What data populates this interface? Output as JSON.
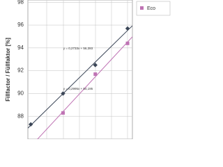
{
  "chart_data": {
    "type": "scatter",
    "y_label": "Fillfactor / Füllfaktor [%]",
    "ylim": [
      86,
      98.2
    ],
    "yticks": [
      88,
      90,
      92,
      94,
      96,
      98
    ],
    "xlim": [
      0.91,
      4.15
    ],
    "grid": true,
    "legend": "top-right",
    "series": [
      {
        "name": null,
        "color": "#3b4657",
        "marker": "diamond",
        "x": [
          1,
          2,
          3,
          4
        ],
        "values": [
          87.3,
          90.0,
          92.5,
          95.7
        ],
        "equation": "y = 0,2733x + 56,393"
      },
      {
        "name": "Eco",
        "color": "#bf73b4",
        "marker": "square",
        "x": [
          2,
          3,
          4
        ],
        "values": [
          88.3,
          91.7,
          94.4
        ],
        "equation": "y = 0,2995x + 54,195"
      }
    ]
  }
}
